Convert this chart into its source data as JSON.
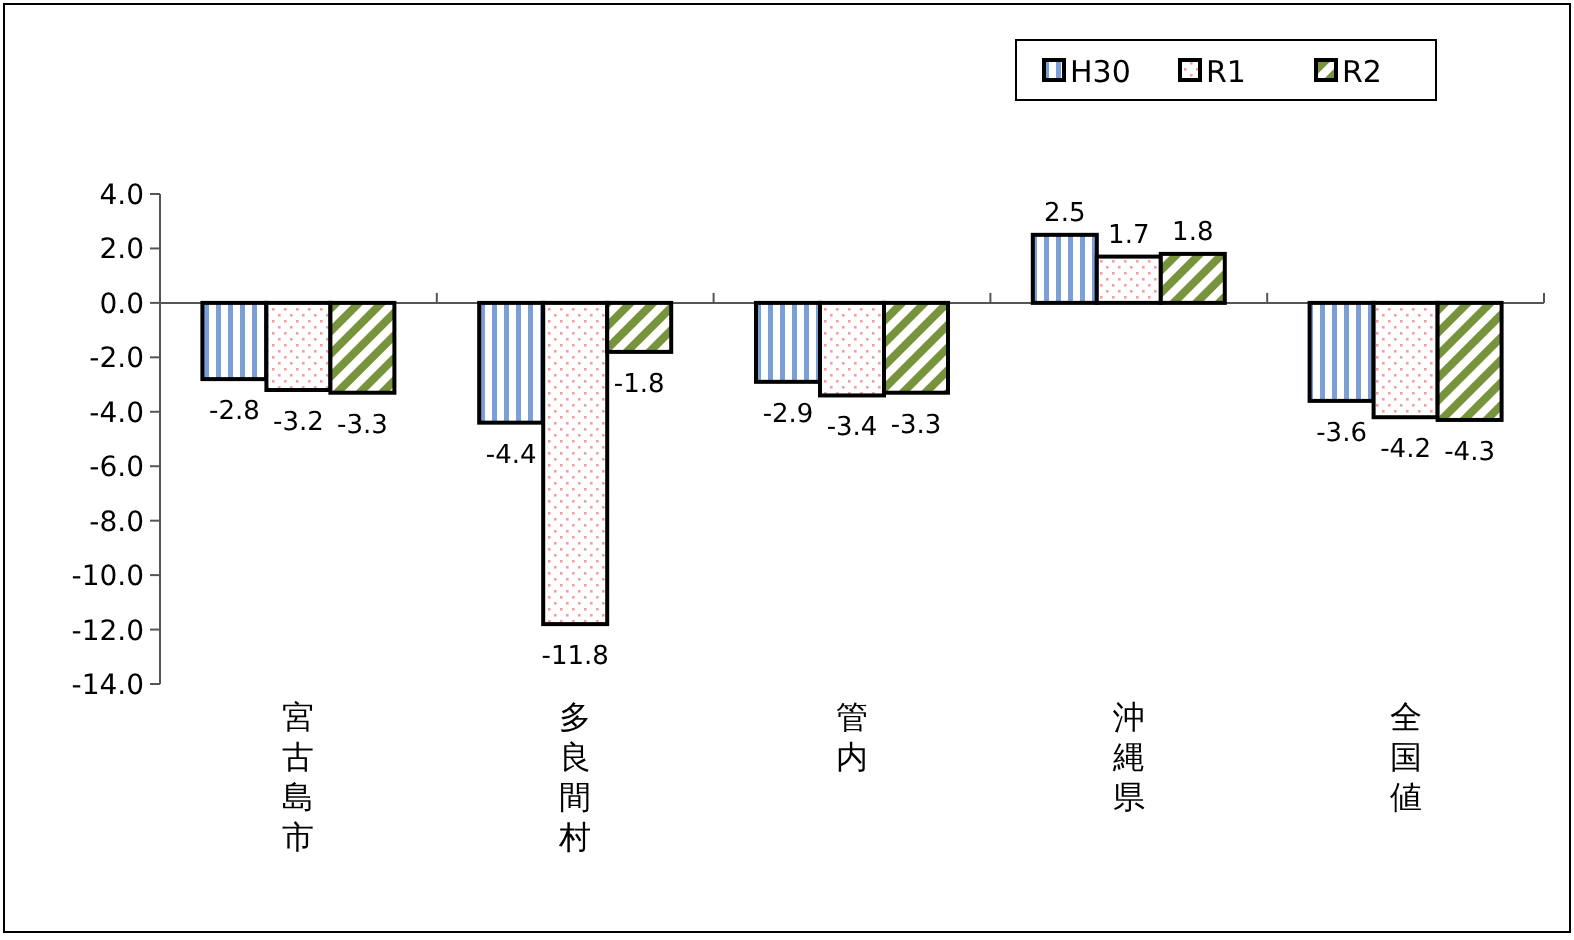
{
  "chart_data": {
    "type": "bar",
    "categories": [
      "宮古島市",
      "多良間村",
      "管内",
      "沖縄県",
      "全国値"
    ],
    "series": [
      {
        "name": "H30",
        "color": "#7ba0d8",
        "values": [
          -2.8,
          -4.4,
          -2.9,
          2.5,
          -3.6
        ]
      },
      {
        "name": "R1",
        "color": "#f0a0a0",
        "values": [
          -3.2,
          -11.8,
          -3.4,
          1.7,
          -4.2
        ]
      },
      {
        "name": "R2",
        "color": "#77933c",
        "values": [
          -3.3,
          -1.8,
          -3.3,
          1.8,
          -4.3
        ]
      }
    ],
    "ylim": [
      -14,
      4
    ],
    "yticks": [
      {
        "value": 4,
        "label": "4.0"
      },
      {
        "value": 2,
        "label": "2.0"
      },
      {
        "value": 0,
        "label": "0.0"
      },
      {
        "value": -2,
        "label": "-2.0"
      },
      {
        "value": -4,
        "label": "-4.0"
      },
      {
        "value": -6,
        "label": "-6.0"
      },
      {
        "value": -8,
        "label": "-8.0"
      },
      {
        "value": -10,
        "label": "-10.0"
      },
      {
        "value": -12,
        "label": "-12.0"
      },
      {
        "value": -14,
        "label": "-14.0"
      }
    ],
    "data_labels": true,
    "legend": "top right"
  }
}
